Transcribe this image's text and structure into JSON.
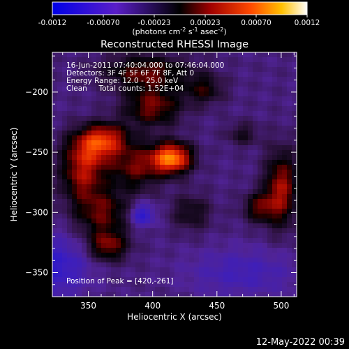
{
  "colorbar": {
    "ticks": [
      "-0.0012",
      "-0.00070",
      "-0.00023",
      "0.00023",
      "0.00070",
      "0.0012"
    ],
    "label_pre": "(photons cm",
    "label_sup1": "-2",
    "label_mid": " s",
    "label_sup2": "-1",
    "label_post": " asec",
    "label_sup3": "-2",
    "label_end": ")"
  },
  "chart_data": {
    "type": "heatmap",
    "title": "Reconstructed RHESSI Image",
    "xlabel": "Heliocentric X (arcsec)",
    "ylabel": "Heliocentric Y (arcsec)",
    "xlim": [
      322,
      512
    ],
    "ylim": [
      -370,
      -167
    ],
    "xticks": [
      350,
      400,
      450,
      500
    ],
    "yticks": [
      -200,
      -250,
      -300,
      -350
    ],
    "colorbar_range": [
      -0.0012,
      0.0012
    ],
    "annotations": [
      "16-Jun-2011 07:40:04.000 to 07:46:04.000",
      "Detectors: 3F 4F 5F 6F 7F 8F, Att 0",
      "Energy Range: 12.0 - 25.0 keV",
      "Clean     Total counts: 1.52E+04"
    ],
    "peak_label": "Position of Peak = [420,-261]",
    "peak": [
      420,
      -261
    ],
    "sources": [
      {
        "x": 415,
        "y": -255,
        "sx": 11,
        "sy": 9,
        "amp": 0.00115
      },
      {
        "x": 387,
        "y": -262,
        "sx": 14,
        "sy": 14,
        "amp": 0.00055
      },
      {
        "x": 352,
        "y": -246,
        "sx": 14,
        "sy": 12,
        "amp": 0.0007
      },
      {
        "x": 345,
        "y": -270,
        "sx": 12,
        "sy": 14,
        "amp": 0.0006
      },
      {
        "x": 365,
        "y": -238,
        "sx": 12,
        "sy": 9,
        "amp": 0.00052
      },
      {
        "x": 360,
        "y": -300,
        "sx": 16,
        "sy": 14,
        "amp": 0.00055
      },
      {
        "x": 365,
        "y": -328,
        "sx": 11,
        "sy": 9,
        "amp": 0.0006
      },
      {
        "x": 400,
        "y": -212,
        "sx": 16,
        "sy": 12,
        "amp": 0.0006
      },
      {
        "x": 395,
        "y": -183,
        "sx": 24,
        "sy": 10,
        "amp": 0.00055
      },
      {
        "x": 440,
        "y": -198,
        "sx": 11,
        "sy": 9,
        "amp": 0.0004
      },
      {
        "x": 430,
        "y": -300,
        "sx": 11,
        "sy": 11,
        "amp": 0.00035
      },
      {
        "x": 500,
        "y": -280,
        "sx": 9,
        "sy": 22,
        "amp": 0.0007
      },
      {
        "x": 483,
        "y": -296,
        "sx": 9,
        "sy": 9,
        "amp": 0.0005
      },
      {
        "x": 470,
        "y": -235,
        "sx": 9,
        "sy": 7,
        "amp": 0.0003
      },
      {
        "x": 392,
        "y": -302,
        "sx": 7,
        "sy": 7,
        "amp": -0.00055
      },
      {
        "x": 325,
        "y": -345,
        "sx": 18,
        "sy": 18,
        "amp": -0.00045
      },
      {
        "x": 470,
        "y": -350,
        "sx": 30,
        "sy": 14,
        "amp": -0.0003
      }
    ]
  },
  "footer_timestamp": "12-May-2022 00:39"
}
